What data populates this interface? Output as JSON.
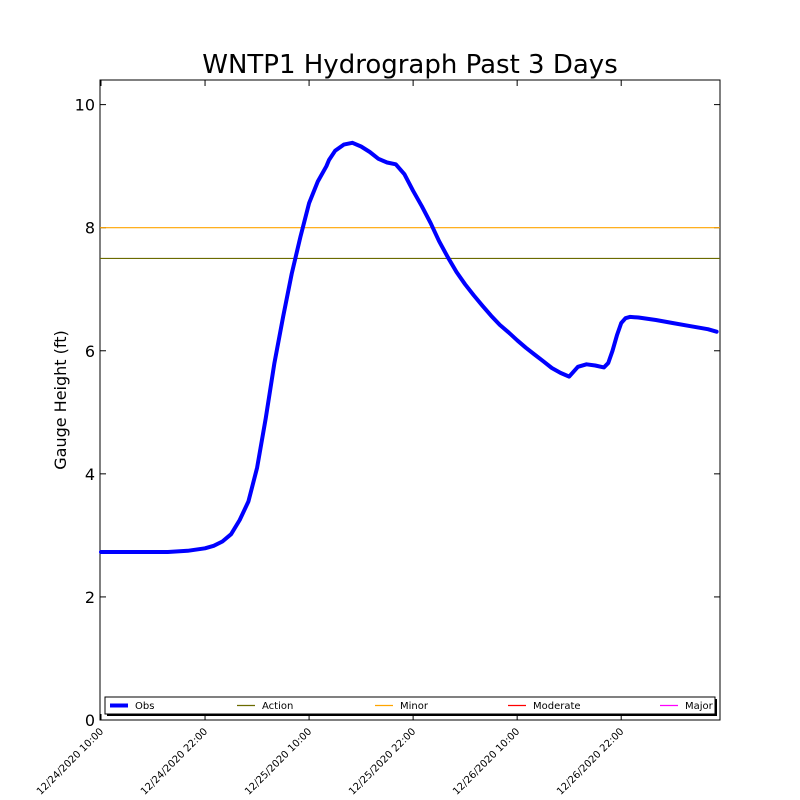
{
  "chart_data": {
    "type": "line",
    "title": "WNTP1 Hydrograph Past 3 Days",
    "xlabel": "",
    "ylabel": "Gauge Height (ft)",
    "ylim": [
      0,
      10.4
    ],
    "xlim_hours_from_first_tick": [
      0,
      71
    ],
    "y_ticks": [
      "0",
      "2",
      "4",
      "6",
      "8",
      "10"
    ],
    "x_ticks": [
      "12/24/2020 10:00",
      "12/24/2020 22:00",
      "12/25/2020 10:00",
      "12/25/2020 22:00",
      "12/26/2020 10:00",
      "12/26/2020 22:00"
    ],
    "grid": false,
    "legend_position": "bottom",
    "series": [
      {
        "name": "Obs",
        "color": "#0000ff",
        "points": [
          [
            0,
            2.73
          ],
          [
            4,
            2.73
          ],
          [
            7.7,
            2.73
          ],
          [
            10,
            2.75
          ],
          [
            12,
            2.79
          ],
          [
            13,
            2.83
          ],
          [
            14,
            2.9
          ],
          [
            15,
            3.02
          ],
          [
            16,
            3.25
          ],
          [
            17,
            3.55
          ],
          [
            18,
            4.1
          ],
          [
            19,
            4.9
          ],
          [
            20,
            5.8
          ],
          [
            21,
            6.55
          ],
          [
            22,
            7.25
          ],
          [
            23,
            7.85
          ],
          [
            24,
            8.4
          ],
          [
            25,
            8.75
          ],
          [
            26,
            9.0
          ],
          [
            26.3,
            9.1
          ],
          [
            27,
            9.25
          ],
          [
            28,
            9.35
          ],
          [
            29,
            9.38
          ],
          [
            30,
            9.32
          ],
          [
            31,
            9.23
          ],
          [
            32,
            9.12
          ],
          [
            33,
            9.06
          ],
          [
            34,
            9.03
          ],
          [
            35,
            8.87
          ],
          [
            36,
            8.6
          ],
          [
            37,
            8.35
          ],
          [
            38,
            8.08
          ],
          [
            39,
            7.78
          ],
          [
            40,
            7.52
          ],
          [
            41,
            7.28
          ],
          [
            42,
            7.08
          ],
          [
            43,
            6.9
          ],
          [
            44,
            6.73
          ],
          [
            45,
            6.57
          ],
          [
            46,
            6.42
          ],
          [
            47,
            6.3
          ],
          [
            48,
            6.17
          ],
          [
            49,
            6.05
          ],
          [
            50,
            5.94
          ],
          [
            51,
            5.83
          ],
          [
            52,
            5.72
          ],
          [
            53,
            5.64
          ],
          [
            54,
            5.58
          ],
          [
            55,
            5.74
          ],
          [
            56,
            5.78
          ],
          [
            57,
            5.76
          ],
          [
            58,
            5.73
          ],
          [
            58.5,
            5.8
          ],
          [
            59,
            6.0
          ],
          [
            59.5,
            6.25
          ],
          [
            60,
            6.45
          ],
          [
            60.5,
            6.53
          ],
          [
            61,
            6.55
          ],
          [
            62,
            6.54
          ],
          [
            64,
            6.5
          ],
          [
            66,
            6.45
          ],
          [
            68,
            6.4
          ],
          [
            70,
            6.35
          ],
          [
            71,
            6.31
          ]
        ]
      },
      {
        "name": "Action",
        "color": "#6b6b00",
        "value": 7.5
      },
      {
        "name": "Minor",
        "color": "#ffa500",
        "value": 8.0
      },
      {
        "name": "Moderate",
        "color": "#ff0000",
        "value": null
      },
      {
        "name": "Major",
        "color": "#ff00ff",
        "value": null
      }
    ]
  }
}
